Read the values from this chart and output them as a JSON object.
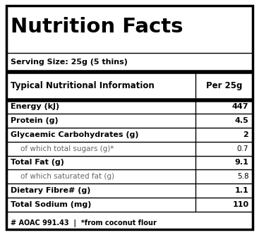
{
  "title": "Nutrition Facts",
  "serving_size": "Serving Size: 25g (5 thins)",
  "header_col1": "Typical Nutritional Information",
  "header_col2": "Per 25g",
  "rows": [
    {
      "label": "Energy (kJ)",
      "value": "447",
      "bold": true,
      "indent": false
    },
    {
      "label": "Protein (g)",
      "value": "4.5",
      "bold": true,
      "indent": false
    },
    {
      "label": "Glycaemic Carbohydrates (g)",
      "value": "2",
      "bold": true,
      "indent": false
    },
    {
      "label": "of which total sugars (g)*",
      "value": "0.7",
      "bold": false,
      "indent": true
    },
    {
      "label": "Total Fat (g)",
      "value": "9.1",
      "bold": true,
      "indent": false
    },
    {
      "label": "of which saturated fat (g)",
      "value": "5.8",
      "bold": false,
      "indent": true
    },
    {
      "label": "Dietary Fibre# (g)",
      "value": "1.1",
      "bold": true,
      "indent": false
    },
    {
      "label": "Total Sodium (mg)",
      "value": "110",
      "bold": true,
      "indent": false
    }
  ],
  "footnote": "# AOAC 991.43  |  *from coconut flour",
  "bg_color": "#ffffff",
  "border_color": "#000000",
  "text_color": "#000000",
  "indent_color": "#666666",
  "col_split": 0.755,
  "fig_width": 3.67,
  "fig_height": 3.33,
  "dpi": 100
}
